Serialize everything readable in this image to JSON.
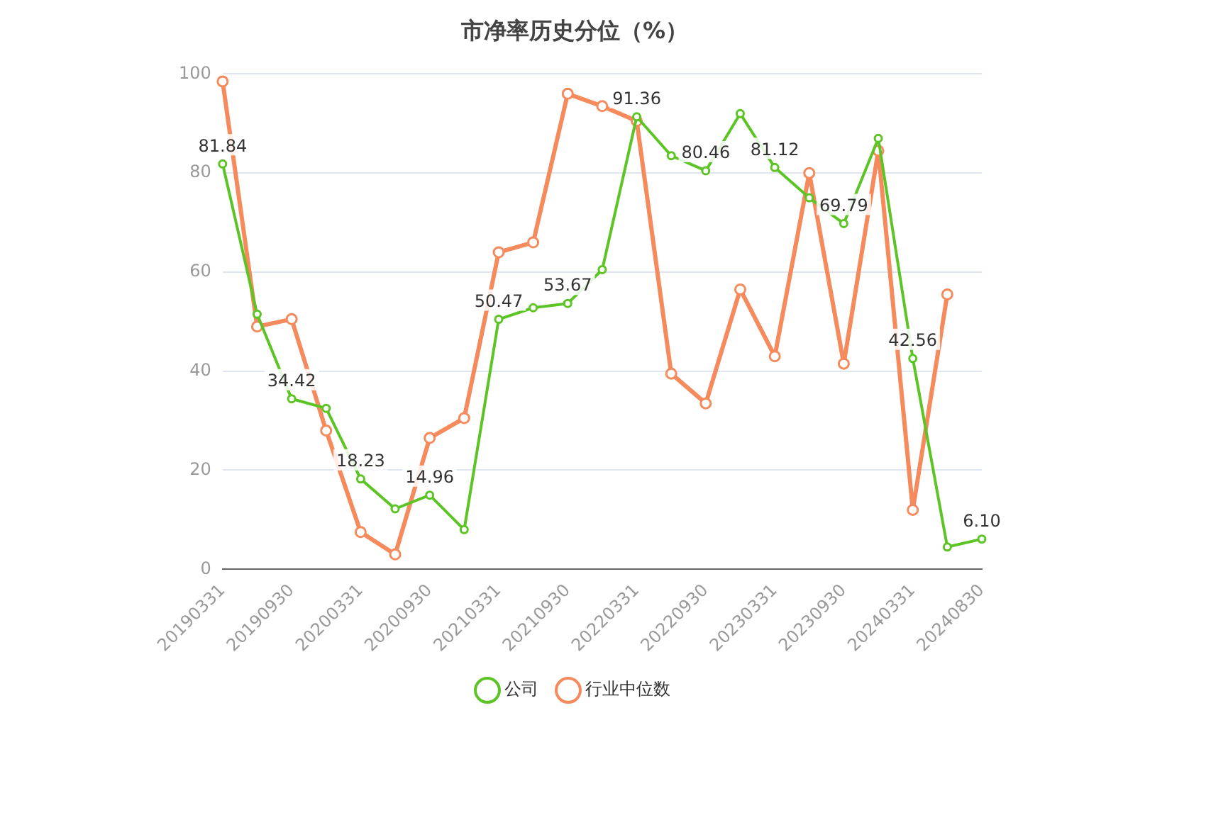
{
  "chart_data": {
    "type": "line",
    "title": "市净率历史分位（%）",
    "categories": [
      "20190331",
      null,
      "20190930",
      null,
      "20200331",
      null,
      "20200930",
      null,
      "20210331",
      null,
      "20210930",
      null,
      "20220331",
      null,
      "20220930",
      null,
      "20230331",
      null,
      "20230930",
      null,
      "20240331",
      null,
      "20240830"
    ],
    "series": [
      {
        "name": "公司",
        "color": "#5cc424",
        "values": [
          81.84,
          51.5,
          34.42,
          32.5,
          18.23,
          12.2,
          14.96,
          8,
          50.47,
          52.8,
          53.67,
          60.5,
          91.36,
          83.5,
          80.46,
          92,
          81.12,
          75,
          69.79,
          87,
          42.56,
          4.5,
          6.1
        ],
        "value_labels": [
          "81.84",
          null,
          "34.42",
          null,
          "18.23",
          null,
          "14.96",
          null,
          "50.47",
          null,
          "53.67",
          null,
          "91.36",
          null,
          "80.46",
          null,
          "81.12",
          null,
          "69.79",
          null,
          "42.56",
          null,
          "6.10"
        ]
      },
      {
        "name": "行业中位数",
        "color": "#f58a5c",
        "values": [
          98.5,
          49,
          50.5,
          28,
          7.5,
          3,
          26.5,
          30.5,
          64,
          66,
          96,
          93.5,
          90.5,
          39.5,
          33.5,
          56.5,
          43,
          80,
          41.5,
          84.5,
          12,
          55.5,
          null
        ]
      }
    ],
    "ylim": [
      0,
      100
    ],
    "yticks": [
      0,
      20,
      40,
      60,
      80,
      100
    ],
    "grid": "y",
    "legend": "bottom",
    "marker": "circle",
    "line_style": "solid"
  }
}
